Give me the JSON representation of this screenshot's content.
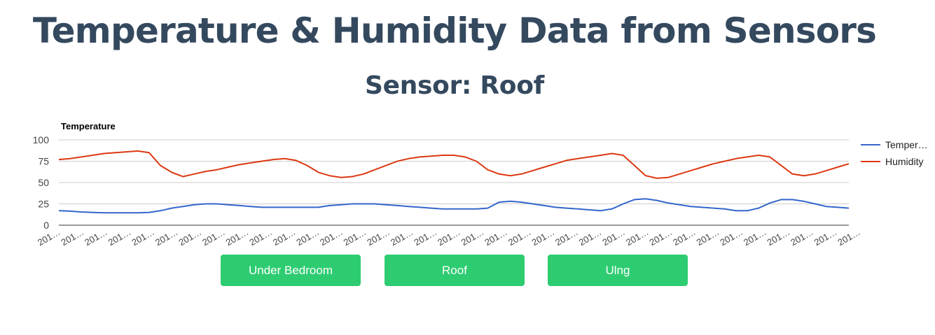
{
  "header": {
    "title": "Temperature & Humidity Data from Sensors",
    "sensor_label": "Sensor: Roof"
  },
  "colors": {
    "heading": "#34495e",
    "button": "#2ecc71",
    "temperature": "#3366cc",
    "humidity": "#dc3912",
    "grid": "#cccccc",
    "axis_text": "#444444"
  },
  "buttons": [
    {
      "label": "Under Bedroom"
    },
    {
      "label": "Roof"
    },
    {
      "label": "Ulng"
    }
  ],
  "chart_data": {
    "type": "line",
    "title": "Temperature",
    "xlabel": "",
    "ylabel": "",
    "ylim": [
      0,
      100
    ],
    "yticks": [
      0,
      25,
      50,
      75,
      100
    ],
    "grid": true,
    "legend_position": "right",
    "x_tick_labels": [
      "201…",
      "201…",
      "201…",
      "201…",
      "201…",
      "201…",
      "201…",
      "201…",
      "201…",
      "201…",
      "201…",
      "201…",
      "201…",
      "201…",
      "201…",
      "201…",
      "201…",
      "201…",
      "201…",
      "201…",
      "201…",
      "201…",
      "201…",
      "201…",
      "201…",
      "201…",
      "201…",
      "201…",
      "201…",
      "201…",
      "201…",
      "201…",
      "201…",
      "201…",
      "201…"
    ],
    "x": [
      0,
      1,
      2,
      3,
      4,
      5,
      6,
      7,
      8,
      9,
      10,
      11,
      12,
      13,
      14,
      15,
      16,
      17,
      18,
      19,
      20,
      21,
      22,
      23,
      24,
      25,
      26,
      27,
      28,
      29,
      30,
      31,
      32,
      33,
      34,
      35,
      36,
      37,
      38,
      39,
      40,
      41,
      42,
      43,
      44,
      45,
      46,
      47,
      48,
      49,
      50,
      51,
      52,
      53,
      54,
      55,
      56,
      57,
      58,
      59,
      60,
      61,
      62,
      63,
      64,
      65,
      66,
      67,
      68,
      69,
      70
    ],
    "series": [
      {
        "name": "Temper…",
        "values": [
          17,
          16.5,
          15.5,
          15,
          14.5,
          14.5,
          14.5,
          14.5,
          15,
          17,
          20,
          22,
          24,
          25,
          25,
          24,
          23,
          22,
          21,
          21,
          21,
          21,
          21,
          21,
          23,
          24,
          25,
          25,
          25,
          24,
          23,
          22,
          21,
          20,
          19,
          19,
          19,
          19,
          20,
          27,
          28,
          27,
          25,
          23,
          21,
          20,
          19,
          18,
          17,
          19,
          25,
          30,
          31,
          29,
          26,
          24,
          22,
          21,
          20,
          19,
          17,
          17,
          20,
          26,
          30,
          30,
          28,
          25,
          22,
          21,
          20
        ]
      },
      {
        "name": "Humidity",
        "values": [
          77,
          78,
          80,
          82,
          84,
          85,
          86,
          87,
          85,
          70,
          62,
          57,
          60,
          63,
          65,
          68,
          71,
          73,
          75,
          77,
          78,
          76,
          70,
          62,
          58,
          56,
          57,
          60,
          65,
          70,
          75,
          78,
          80,
          81,
          82,
          82,
          80,
          75,
          65,
          60,
          58,
          60,
          64,
          68,
          72,
          76,
          78,
          80,
          82,
          84,
          82,
          70,
          58,
          55,
          56,
          60,
          64,
          68,
          72,
          75,
          78,
          80,
          82,
          80,
          70,
          60,
          58,
          60,
          64,
          68,
          72
        ]
      }
    ]
  }
}
